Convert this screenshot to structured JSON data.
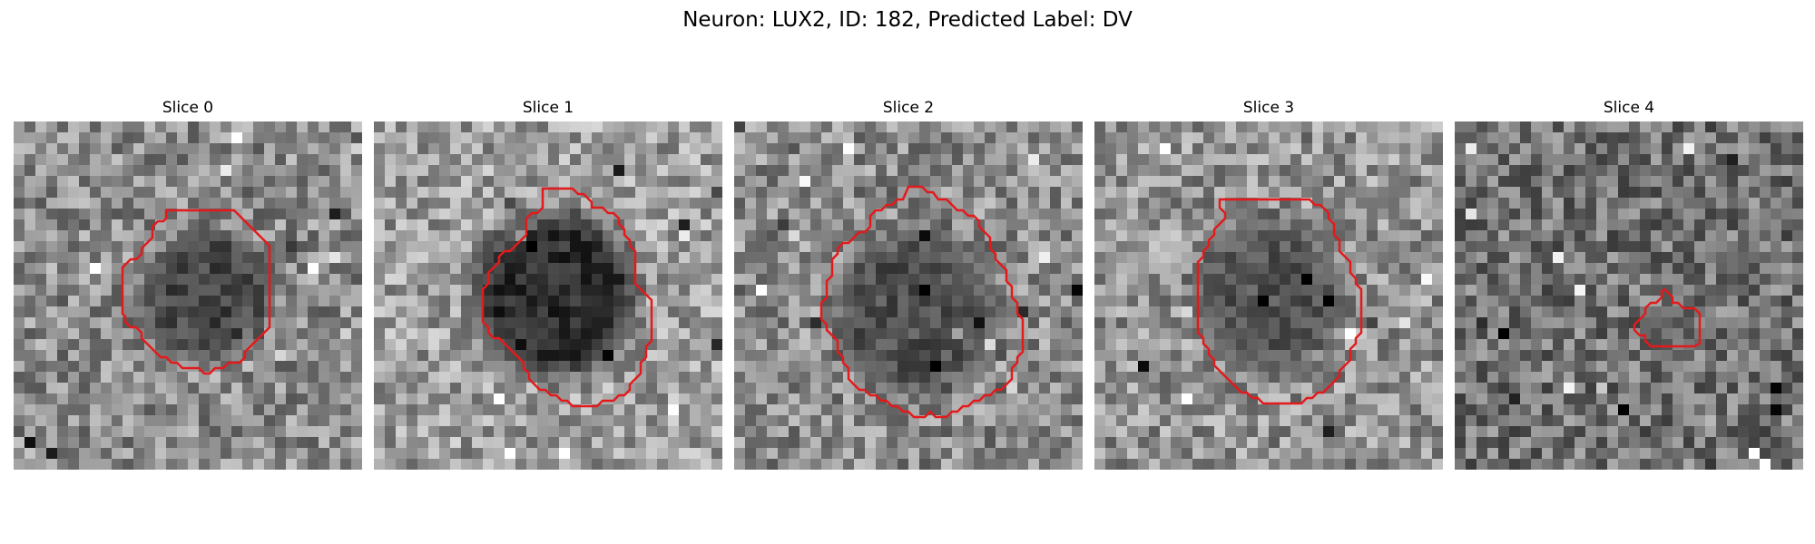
{
  "figure": {
    "title": "Neuron: LUX2, ID: 182, Predicted Label: DV"
  },
  "panels": [
    {
      "title": "Slice 0",
      "seed": 11,
      "bright_bg": 0.55
    },
    {
      "title": "Slice 1",
      "seed": 23,
      "bright_bg": 0.62
    },
    {
      "title": "Slice 2",
      "seed": 37,
      "bright_bg": 0.55
    },
    {
      "title": "Slice 3",
      "seed": 49,
      "bright_bg": 0.58
    },
    {
      "title": "Slice 4",
      "seed": 61,
      "bright_bg": 0.45
    }
  ],
  "colors": {
    "contour": "#e31a1c",
    "background": "#ffffff"
  }
}
